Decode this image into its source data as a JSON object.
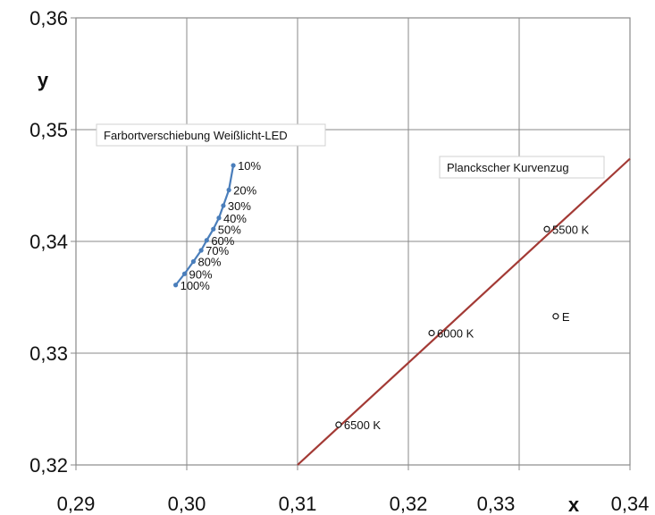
{
  "chart_data": {
    "type": "line",
    "xlabel": "x",
    "ylabel": "y",
    "xlim": [
      0.29,
      0.34
    ],
    "ylim": [
      0.32,
      0.36
    ],
    "x_ticks": [
      "0,29",
      "0,30",
      "0,31",
      "0,32",
      "0,33",
      "0,34"
    ],
    "y_ticks": [
      "0,32",
      "0,33",
      "0,34",
      "0,35",
      "0,36"
    ],
    "grid": true,
    "annotations": [
      "Farbortverschiebung Weißlicht-LED",
      "Planckscher Kurvenzug"
    ],
    "series": [
      {
        "color": "#4a7ebb",
        "points": [
          {
            "label": "10%",
            "x": 0.3042,
            "y": 0.3468
          },
          {
            "label": "20%",
            "x": 0.3038,
            "y": 0.3446
          },
          {
            "label": "30%",
            "x": 0.3033,
            "y": 0.3432
          },
          {
            "label": "40%",
            "x": 0.3029,
            "y": 0.3421
          },
          {
            "label": "50%",
            "x": 0.3024,
            "y": 0.3411
          },
          {
            "label": "60%",
            "x": 0.3018,
            "y": 0.3401
          },
          {
            "label": "70%",
            "x": 0.3013,
            "y": 0.3392
          },
          {
            "label": "80%",
            "x": 0.3006,
            "y": 0.3382
          },
          {
            "label": "90%",
            "x": 0.2998,
            "y": 0.3371
          },
          {
            "label": "100%",
            "x": 0.299,
            "y": 0.3361
          }
        ]
      },
      {
        "color": "#a33a35",
        "line": [
          [
            0.31,
            0.32
          ],
          [
            0.34,
            0.3474
          ]
        ],
        "points": [
          {
            "label": "6500 K",
            "x": 0.3137,
            "y": 0.3236
          },
          {
            "label": "6000 K",
            "x": 0.3221,
            "y": 0.3318
          },
          {
            "label": "5500 K",
            "x": 0.3325,
            "y": 0.3411
          }
        ]
      },
      {
        "color": "#111111",
        "points": [
          {
            "label": "E",
            "x": 0.3333,
            "y": 0.3333
          }
        ]
      }
    ]
  }
}
